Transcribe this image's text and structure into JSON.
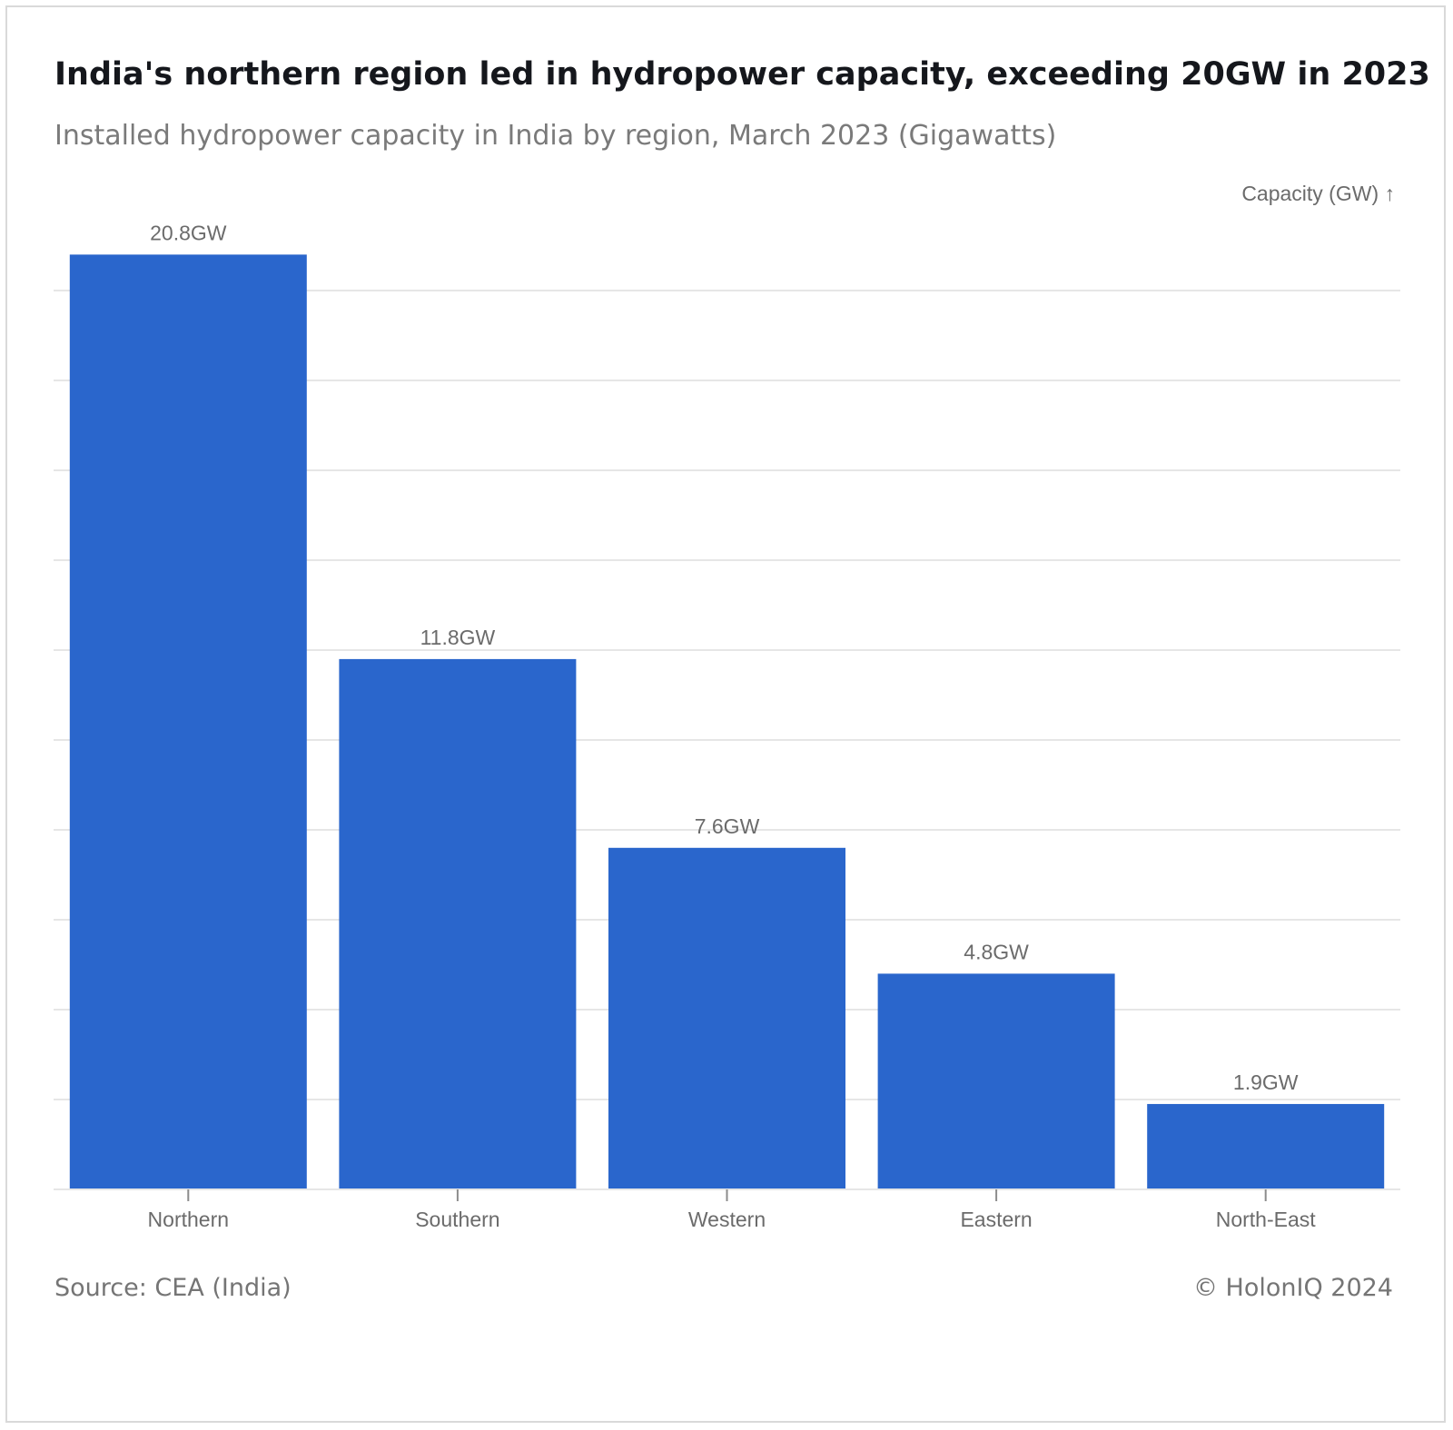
{
  "title": "India's northern region led in hydropower capacity, exceeding 20GW in 2023",
  "subtitle": "Installed hydropower capacity in India by region, March 2023 (Gigawatts)",
  "footer": {
    "source": "Source: CEA (India)",
    "copyright": "© HolonIQ 2024"
  },
  "colors": {
    "bar": "#2a66cc",
    "grid": "#e6e6e6",
    "text_muted": "#6b6b6b"
  },
  "chart_data": {
    "type": "bar",
    "title": "India's northern region led in hydropower capacity, exceeding 20GW in 2023",
    "subtitle": "Installed hydropower capacity in India by region, March 2023 (Gigawatts)",
    "xlabel": "",
    "ylabel": "Capacity (GW) ↑",
    "categories": [
      "Northern",
      "Southern",
      "Western",
      "Eastern",
      "North-East"
    ],
    "values": [
      20.8,
      11.8,
      7.6,
      4.8,
      1.9
    ],
    "value_labels": [
      "20.8GW",
      "11.8GW",
      "7.6GW",
      "4.8GW",
      "1.9GW"
    ],
    "ylim": [
      0,
      20
    ],
    "ytick_step": 2,
    "y_tick_labels_shown": false,
    "grid": true,
    "legend": "none"
  }
}
